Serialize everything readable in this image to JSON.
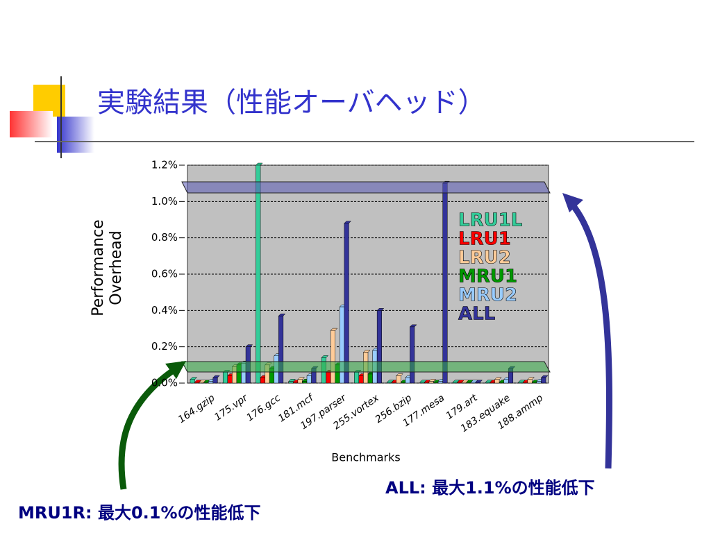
{
  "chart_data": {
    "type": "bar",
    "title": "実験結果（性能オーバヘッド）",
    "y_label": "Performance Overhead",
    "x_label": "Benchmarks",
    "categories": [
      "164.gzip",
      "175.vpr",
      "176.gcc",
      "181.mcf",
      "197.parser",
      "255.vortex",
      "256.bzip",
      "177.mesa",
      "179.art",
      "183.equake",
      "188.ammp"
    ],
    "series": [
      {
        "name": "LRU1L",
        "color": "#33cc99",
        "values": [
          0.02,
          0.06,
          1.2,
          0.01,
          0.14,
          0.06,
          0.005,
          0.005,
          0.005,
          0.005,
          0.005
        ]
      },
      {
        "name": "LRU1",
        "color": "#ff0000",
        "values": [
          0.005,
          0.04,
          0.03,
          0.005,
          0.06,
          0.04,
          0.005,
          0.005,
          0.005,
          0.005,
          0.005
        ]
      },
      {
        "name": "LRU2",
        "color": "#ffcc99",
        "values": [
          0.005,
          0.09,
          0.1,
          0.02,
          0.29,
          0.17,
          0.04,
          0.01,
          0.005,
          0.02,
          0.02
        ]
      },
      {
        "name": "MRU1",
        "color": "#009900",
        "values": [
          0.005,
          0.1,
          0.08,
          0.01,
          0.1,
          0.05,
          0.005,
          0.005,
          0.005,
          0.005,
          0.005
        ]
      },
      {
        "name": "MRU2",
        "color": "#99ccff",
        "values": [
          0.01,
          0.11,
          0.15,
          0.04,
          0.42,
          0.18,
          0.03,
          0.01,
          0.005,
          0.02,
          0.01
        ]
      },
      {
        "name": "ALL",
        "color": "#333399",
        "values": [
          0.03,
          0.2,
          0.37,
          0.08,
          0.88,
          0.4,
          0.31,
          1.1,
          0.005,
          0.08,
          0.03
        ]
      }
    ],
    "ylim": [
      0,
      1.2
    ],
    "yticks": [
      {
        "value": 0,
        "label": "0.0%"
      },
      {
        "value": 0.2,
        "label": "0.2%"
      },
      {
        "value": 0.4,
        "label": "0.4%"
      },
      {
        "value": 0.6,
        "label": "0.6%"
      },
      {
        "value": 0.8,
        "label": "0.8%"
      },
      {
        "value": 1.0,
        "label": "1.0%"
      },
      {
        "value": 1.2,
        "label": "1.2%"
      }
    ],
    "grid": true,
    "annotations": [
      "ALL: 最大1.1%の性能低下",
      "MRU1R: 最大0.1%の性能低下"
    ]
  }
}
